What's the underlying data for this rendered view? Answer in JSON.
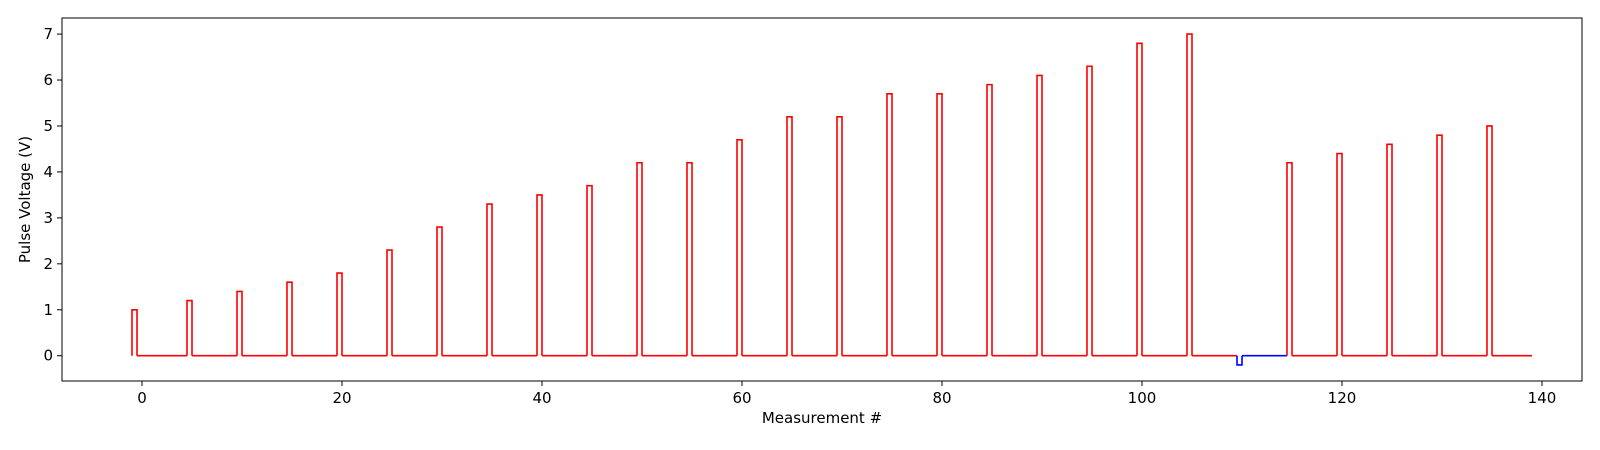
{
  "chart_data": {
    "type": "line",
    "title": "",
    "xlabel": "Measurement #",
    "ylabel": "Pulse Voltage (V)",
    "xlim": [
      -8,
      144
    ],
    "ylim": [
      -0.55,
      7.35
    ],
    "grid": false,
    "legend": "none",
    "x_ticks": [
      0,
      20,
      40,
      60,
      80,
      100,
      120,
      140
    ],
    "y_ticks": [
      0,
      1,
      2,
      3,
      4,
      5,
      6,
      7
    ],
    "x_tick_labels": [
      "0",
      "20",
      "40",
      "60",
      "80",
      "100",
      "120",
      "140"
    ],
    "y_tick_labels": [
      "0",
      "1",
      "2",
      "3",
      "4",
      "5",
      "6",
      "7"
    ],
    "pulse_width": 0.5,
    "x_start": -1,
    "x_end": 139,
    "series": [
      {
        "color": "#ff0000",
        "pulses": [
          {
            "x": -1,
            "v": 1.0
          },
          {
            "x": 4.5,
            "v": 1.2
          },
          {
            "x": 9.5,
            "v": 1.4
          },
          {
            "x": 14.5,
            "v": 1.6
          },
          {
            "x": 19.5,
            "v": 1.8
          },
          {
            "x": 24.5,
            "v": 2.3
          },
          {
            "x": 29.5,
            "v": 2.8
          },
          {
            "x": 34.5,
            "v": 3.3
          },
          {
            "x": 39.5,
            "v": 3.5
          },
          {
            "x": 44.5,
            "v": 3.7
          },
          {
            "x": 49.5,
            "v": 4.2
          },
          {
            "x": 54.5,
            "v": 4.2
          },
          {
            "x": 59.5,
            "v": 4.7
          },
          {
            "x": 64.5,
            "v": 5.2
          },
          {
            "x": 69.5,
            "v": 5.2
          },
          {
            "x": 74.5,
            "v": 5.7
          },
          {
            "x": 79.5,
            "v": 5.7
          },
          {
            "x": 84.5,
            "v": 5.9
          },
          {
            "x": 89.5,
            "v": 6.1
          },
          {
            "x": 94.5,
            "v": 6.3
          },
          {
            "x": 99.5,
            "v": 6.8
          },
          {
            "x": 104.5,
            "v": 7.0
          },
          {
            "x": 114.5,
            "v": 4.2
          },
          {
            "x": 119.5,
            "v": 4.4
          },
          {
            "x": 124.5,
            "v": 4.6
          },
          {
            "x": 129.5,
            "v": 4.8
          },
          {
            "x": 134.5,
            "v": 5.0
          }
        ]
      },
      {
        "color": "#0000ff",
        "pulses": [
          {
            "x": 109.5,
            "v": -0.2
          }
        ]
      }
    ]
  }
}
